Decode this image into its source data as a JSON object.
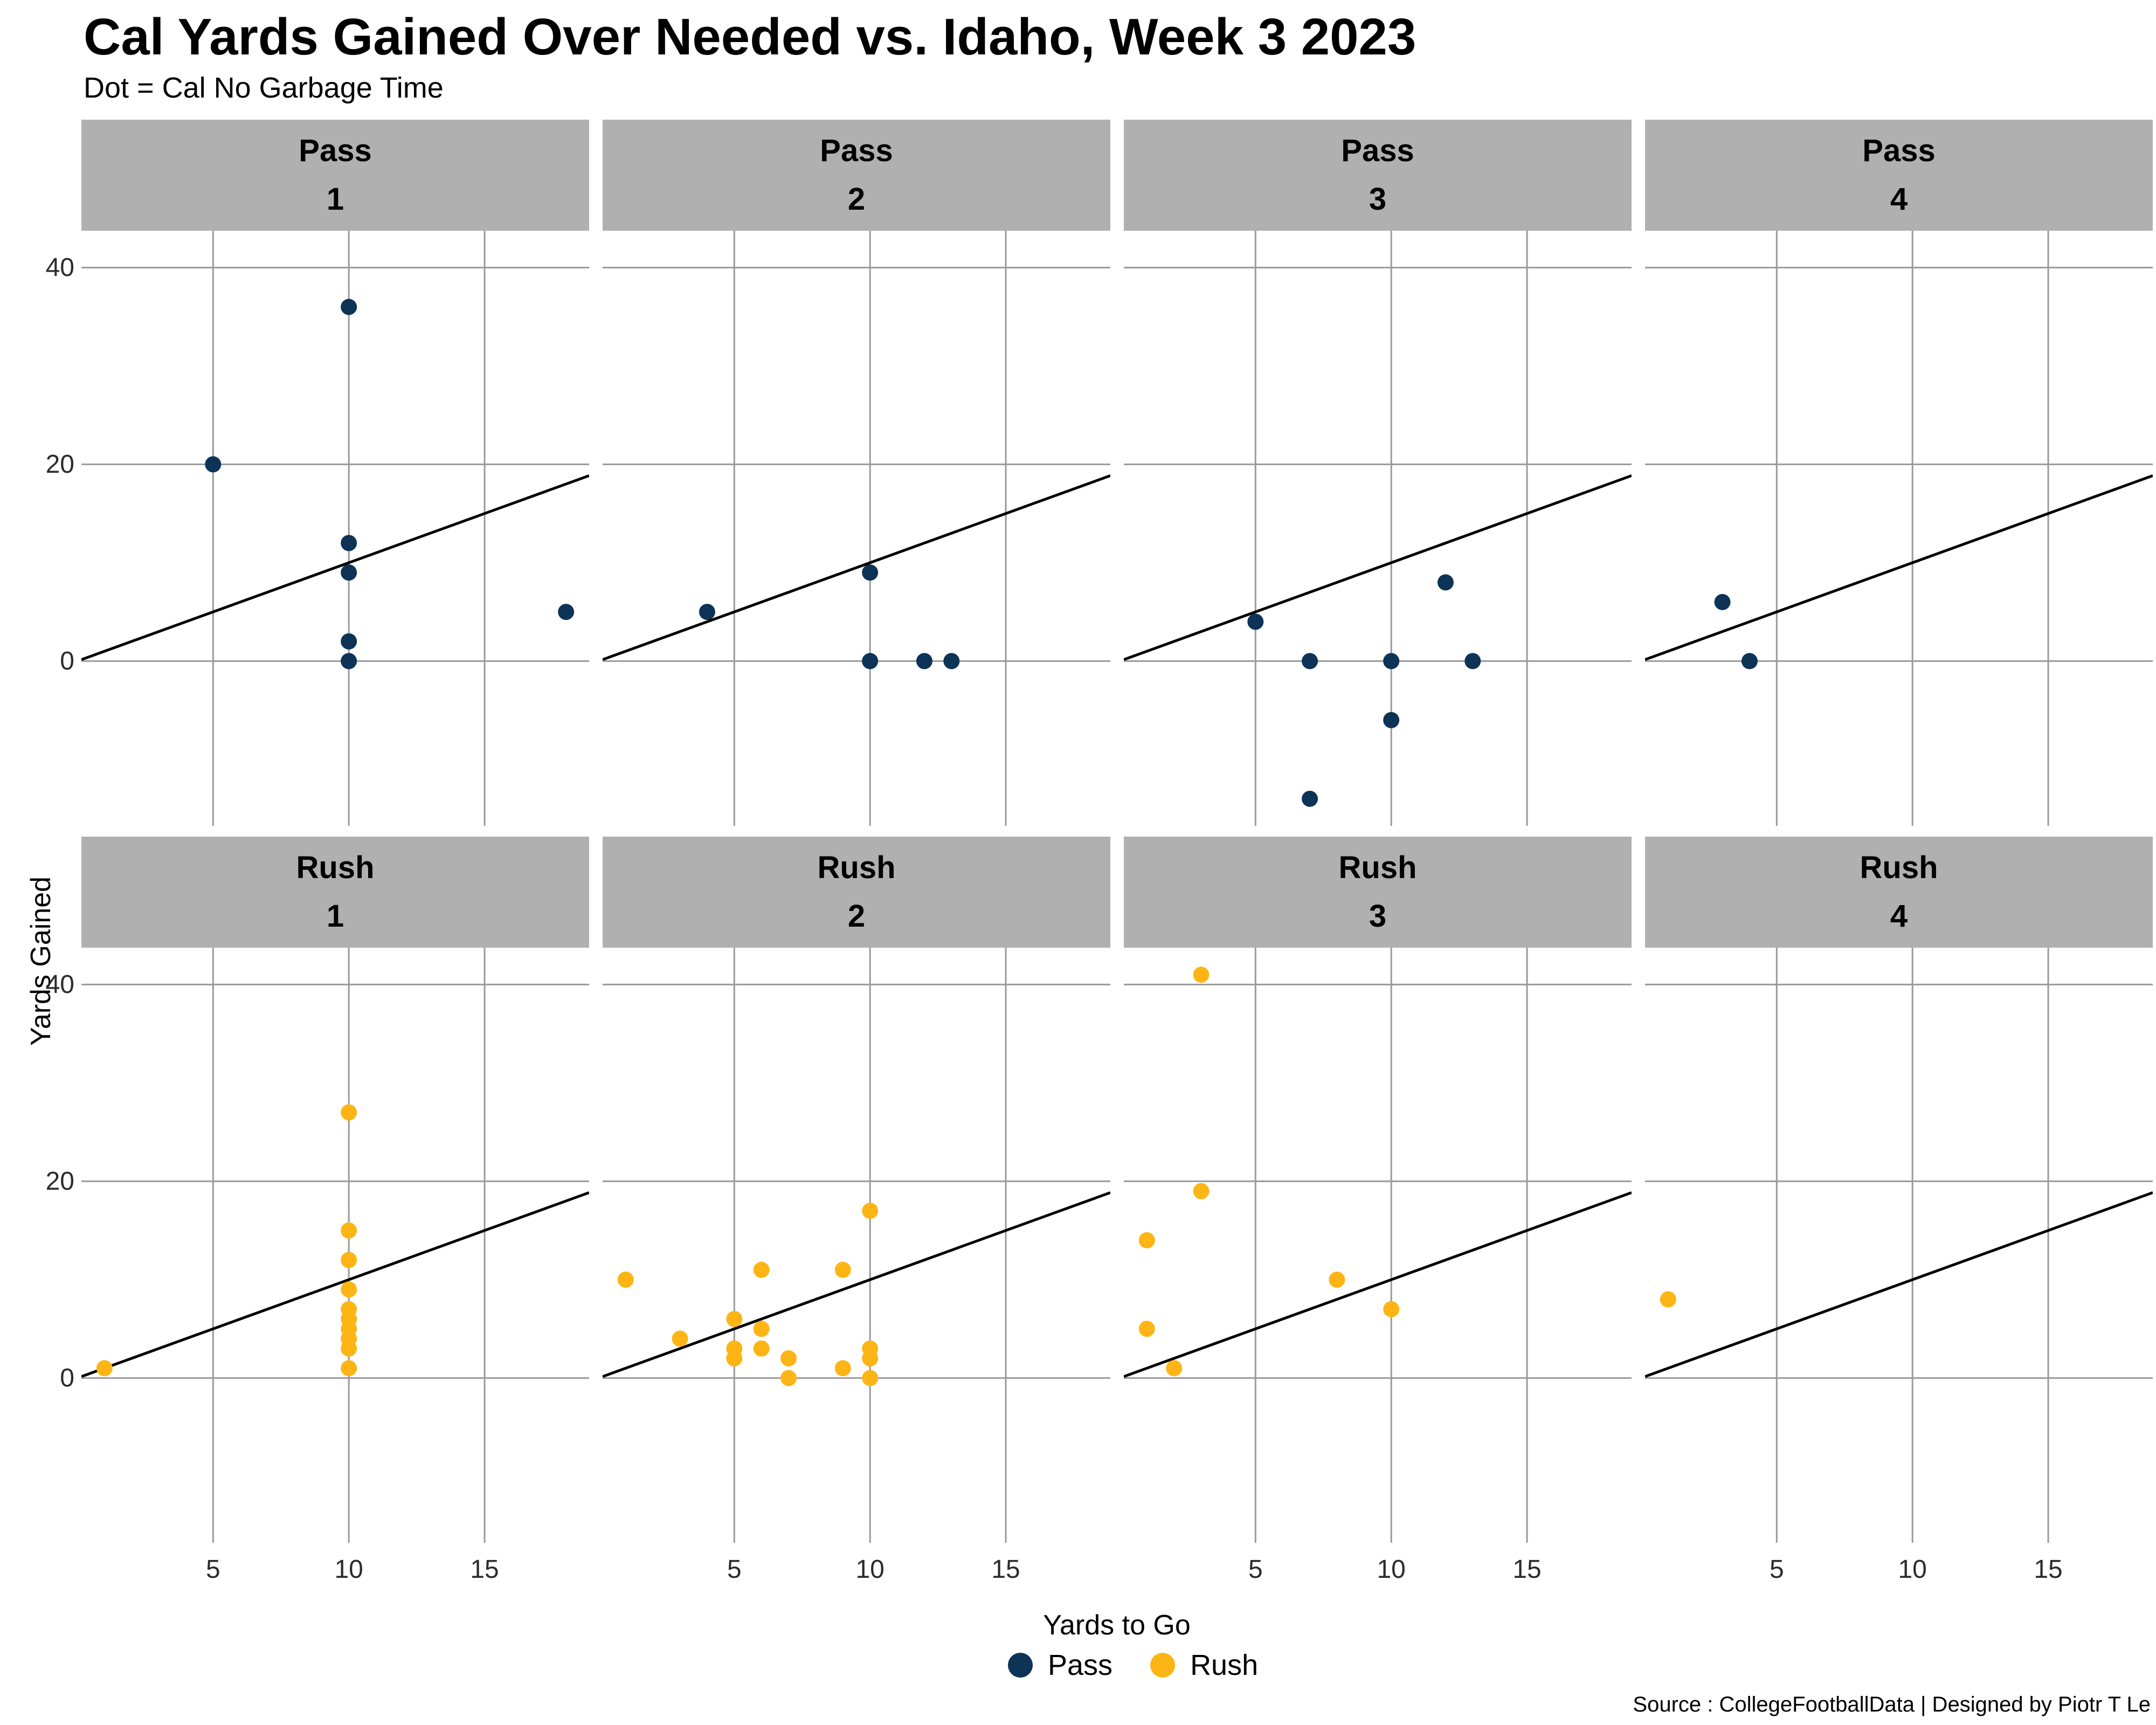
{
  "title": "Cal Yards Gained Over Needed vs. Idaho, Week 3 2023",
  "subtitle": "Dot = Cal No Garbage Time",
  "source": "Source : CollegeFootballData | Designed by Piotr T Le",
  "colors": {
    "pass": "#0D3356",
    "rush": "#FDB515",
    "grid": "#9a9a9a",
    "strip_bg": "#b0b0b0",
    "refline": "#000000",
    "background": "#ffffff"
  },
  "axes": {
    "x_title": "Yards to Go",
    "y_title": "Yards Gained",
    "x_ticks": [
      5,
      10,
      15
    ],
    "y_ticks": [
      0,
      20,
      40
    ],
    "x_range": [
      0.15,
      18.85
    ],
    "y_range": [
      -16.75,
      43.75
    ]
  },
  "legend": {
    "items": [
      {
        "label": "Pass",
        "color_key": "pass"
      },
      {
        "label": "Rush",
        "color_key": "rush"
      }
    ]
  },
  "chart_data": {
    "type": "scatter",
    "facet_rows": [
      "Pass",
      "Rush"
    ],
    "facet_cols": [
      "1",
      "2",
      "3",
      "4"
    ],
    "refline": "y = x (yards needed)",
    "grid": "on",
    "facets": [
      {
        "row": "Pass",
        "col": "1",
        "color_key": "pass",
        "points": [
          [
            5,
            20
          ],
          [
            10,
            36
          ],
          [
            10,
            12
          ],
          [
            10,
            9
          ],
          [
            10,
            2
          ],
          [
            10,
            0
          ],
          [
            18,
            5
          ]
        ]
      },
      {
        "row": "Pass",
        "col": "2",
        "color_key": "pass",
        "points": [
          [
            4,
            5
          ],
          [
            10,
            9
          ],
          [
            10,
            0
          ],
          [
            12,
            0
          ],
          [
            13,
            0
          ]
        ]
      },
      {
        "row": "Pass",
        "col": "3",
        "color_key": "pass",
        "points": [
          [
            5,
            4
          ],
          [
            7,
            0
          ],
          [
            10,
            0
          ],
          [
            13,
            0
          ],
          [
            12,
            8
          ],
          [
            10,
            -6
          ],
          [
            7,
            -14
          ]
        ]
      },
      {
        "row": "Pass",
        "col": "4",
        "color_key": "pass",
        "points": [
          [
            3,
            6
          ],
          [
            4,
            0
          ]
        ]
      },
      {
        "row": "Rush",
        "col": "1",
        "color_key": "rush",
        "points": [
          [
            1,
            1
          ],
          [
            10,
            27
          ],
          [
            10,
            15
          ],
          [
            10,
            12
          ],
          [
            10,
            9
          ],
          [
            10,
            7
          ],
          [
            10,
            6
          ],
          [
            10,
            5
          ],
          [
            10,
            4
          ],
          [
            10,
            3
          ],
          [
            10,
            1
          ]
        ]
      },
      {
        "row": "Rush",
        "col": "2",
        "color_key": "rush",
        "points": [
          [
            1,
            10
          ],
          [
            3,
            4
          ],
          [
            5,
            6
          ],
          [
            5,
            3
          ],
          [
            5,
            2
          ],
          [
            6,
            11
          ],
          [
            6,
            5
          ],
          [
            6,
            3
          ],
          [
            7,
            2
          ],
          [
            7,
            0
          ],
          [
            9,
            11
          ],
          [
            9,
            1
          ],
          [
            10,
            17
          ],
          [
            10,
            3
          ],
          [
            10,
            2
          ],
          [
            10,
            0
          ]
        ]
      },
      {
        "row": "Rush",
        "col": "3",
        "color_key": "rush",
        "points": [
          [
            1,
            14
          ],
          [
            1,
            5
          ],
          [
            2,
            1
          ],
          [
            3,
            19
          ],
          [
            3,
            41
          ],
          [
            8,
            10
          ],
          [
            10,
            7
          ]
        ]
      },
      {
        "row": "Rush",
        "col": "4",
        "color_key": "rush",
        "points": [
          [
            1,
            8
          ]
        ]
      }
    ]
  }
}
